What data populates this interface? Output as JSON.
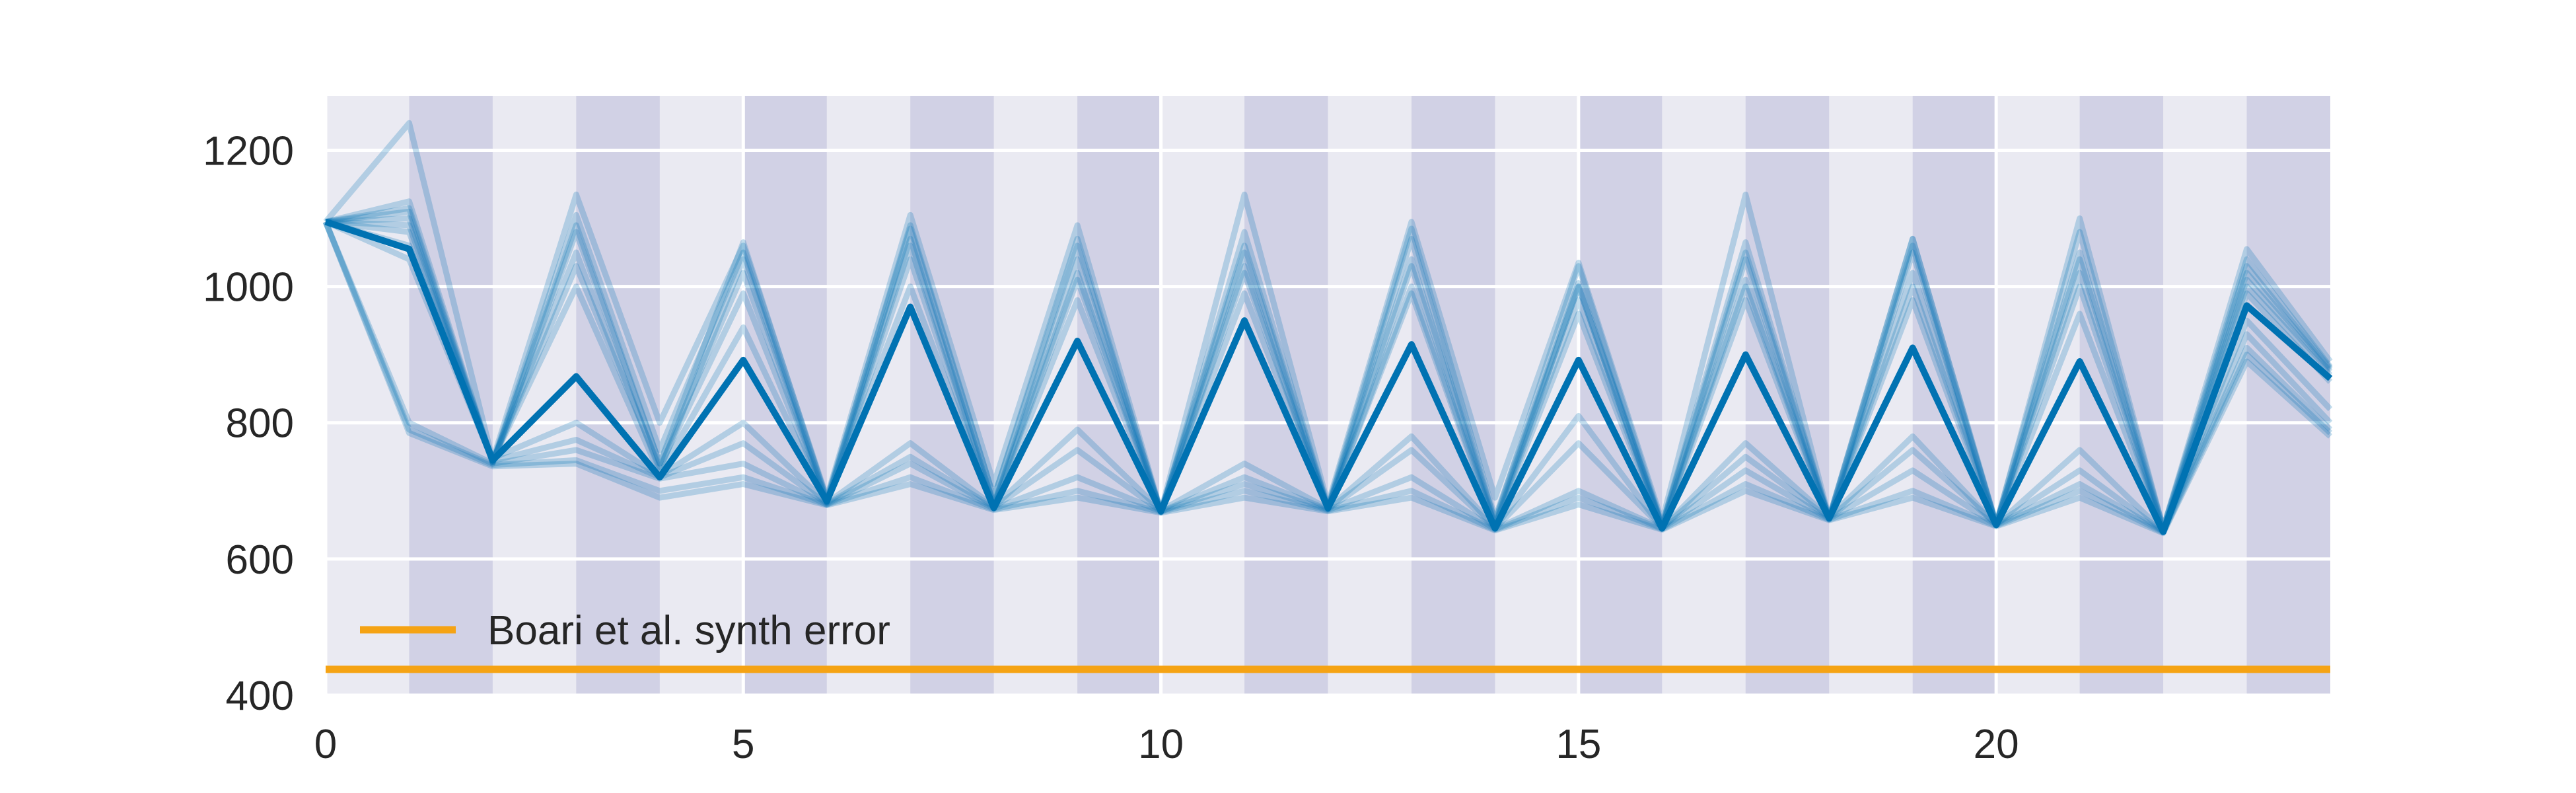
{
  "chart_data": {
    "type": "line",
    "title": "",
    "xlabel": "",
    "ylabel": "",
    "xlim": [
      0,
      24
    ],
    "ylim": [
      400,
      1280
    ],
    "xticks": [
      0,
      5,
      10,
      15,
      20
    ],
    "yticks": [
      400,
      600,
      800,
      1000,
      1200
    ],
    "grid": true,
    "background": "#eaeaf2",
    "shaded_band_color": "#c8c8df",
    "shaded_bands": [
      [
        1,
        2
      ],
      [
        3,
        4
      ],
      [
        5,
        6
      ],
      [
        7,
        8
      ],
      [
        9,
        10
      ],
      [
        11,
        12
      ],
      [
        13,
        14
      ],
      [
        15,
        16
      ],
      [
        17,
        18
      ],
      [
        19,
        20
      ],
      [
        21,
        22
      ],
      [
        23,
        24
      ]
    ],
    "series_color": "#0072b2",
    "main_series": {
      "x": [
        0,
        1,
        2,
        3,
        4,
        5,
        6,
        7,
        8,
        9,
        10,
        11,
        12,
        13,
        14,
        15,
        16,
        17,
        18,
        19,
        20,
        21,
        22,
        23,
        24
      ],
      "y": [
        1095,
        1055,
        745,
        868,
        720,
        892,
        685,
        970,
        675,
        920,
        670,
        950,
        675,
        915,
        645,
        892,
        645,
        900,
        660,
        910,
        650,
        890,
        640,
        972,
        865
      ]
    },
    "faint_series": [
      {
        "y": [
          1095,
          1240,
          745,
          1135,
          800,
          1060,
          690,
          1105,
          710,
          1090,
          670,
          1135,
          680,
          1095,
          690,
          1035,
          655,
          1135,
          660,
          1070,
          650,
          1100,
          645,
          1055,
          890
        ]
      },
      {
        "y": [
          1095,
          1125,
          742,
          1105,
          760,
          1050,
          688,
          1085,
          690,
          1070,
          668,
          1080,
          676,
          1085,
          660,
          1005,
          650,
          1065,
          660,
          1060,
          650,
          1050,
          645,
          1030,
          880
        ]
      },
      {
        "y": [
          1095,
          1110,
          740,
          1090,
          740,
          1065,
          686,
          1070,
          680,
          1040,
          670,
          1050,
          674,
          1070,
          655,
          1000,
          648,
          1040,
          658,
          1050,
          652,
          1020,
          642,
          1010,
          875
        ]
      },
      {
        "y": [
          1095,
          1100,
          742,
          1050,
          730,
          1040,
          684,
          1040,
          678,
          1010,
          669,
          1030,
          673,
          1030,
          650,
          1000,
          647,
          1010,
          659,
          1020,
          651,
          1000,
          641,
          1000,
          870
        ]
      },
      {
        "y": [
          1095,
          1080,
          745,
          1000,
          725,
          940,
          683,
          1000,
          676,
          980,
          670,
          990,
          675,
          990,
          648,
          960,
          646,
          980,
          660,
          980,
          650,
          960,
          640,
          990,
          860
        ]
      },
      {
        "y": [
          1095,
          1060,
          748,
          800,
          722,
          800,
          682,
          770,
          677,
          790,
          671,
          740,
          674,
          780,
          646,
          810,
          645,
          770,
          661,
          780,
          650,
          760,
          640,
          950,
          820
        ]
      },
      {
        "y": [
          1095,
          1040,
          744,
          775,
          720,
          770,
          681,
          750,
          676,
          760,
          670,
          720,
          673,
          760,
          645,
          770,
          646,
          750,
          660,
          760,
          651,
          730,
          640,
          930,
          800
        ]
      },
      {
        "y": [
          1095,
          800,
          740,
          760,
          718,
          740,
          680,
          740,
          674,
          720,
          670,
          710,
          672,
          720,
          644,
          700,
          645,
          730,
          659,
          730,
          650,
          710,
          640,
          910,
          790
        ]
      },
      {
        "y": [
          1095,
          790,
          738,
          745,
          700,
          720,
          680,
          720,
          673,
          700,
          669,
          700,
          671,
          700,
          643,
          690,
          644,
          710,
          658,
          700,
          649,
          700,
          639,
          900,
          785
        ]
      },
      {
        "y": [
          1095,
          785,
          736,
          740,
          690,
          710,
          679,
          710,
          672,
          690,
          668,
          690,
          670,
          690,
          642,
          680,
          643,
          700,
          657,
          690,
          648,
          690,
          638,
          890,
          780
        ]
      },
      {
        "y": [
          1095,
          1115,
          742,
          1080,
          740,
          1020,
          684,
          1090,
          690,
          1060,
          670,
          1060,
          676,
          1040,
          655,
          1030,
          650,
          1050,
          660,
          1070,
          652,
          1080,
          645,
          1040,
          882
        ]
      },
      {
        "y": [
          1095,
          1090,
          744,
          1030,
          735,
          990,
          683,
          1060,
          680,
          1020,
          670,
          1020,
          674,
          1000,
          650,
          980,
          647,
          1000,
          659,
          1000,
          651,
          1040,
          642,
          1020,
          878
        ]
      }
    ],
    "reference_line": {
      "label": "Boari et al. synth error",
      "y": 438,
      "color": "#f5a314"
    },
    "legend_placement": "lower-left"
  }
}
